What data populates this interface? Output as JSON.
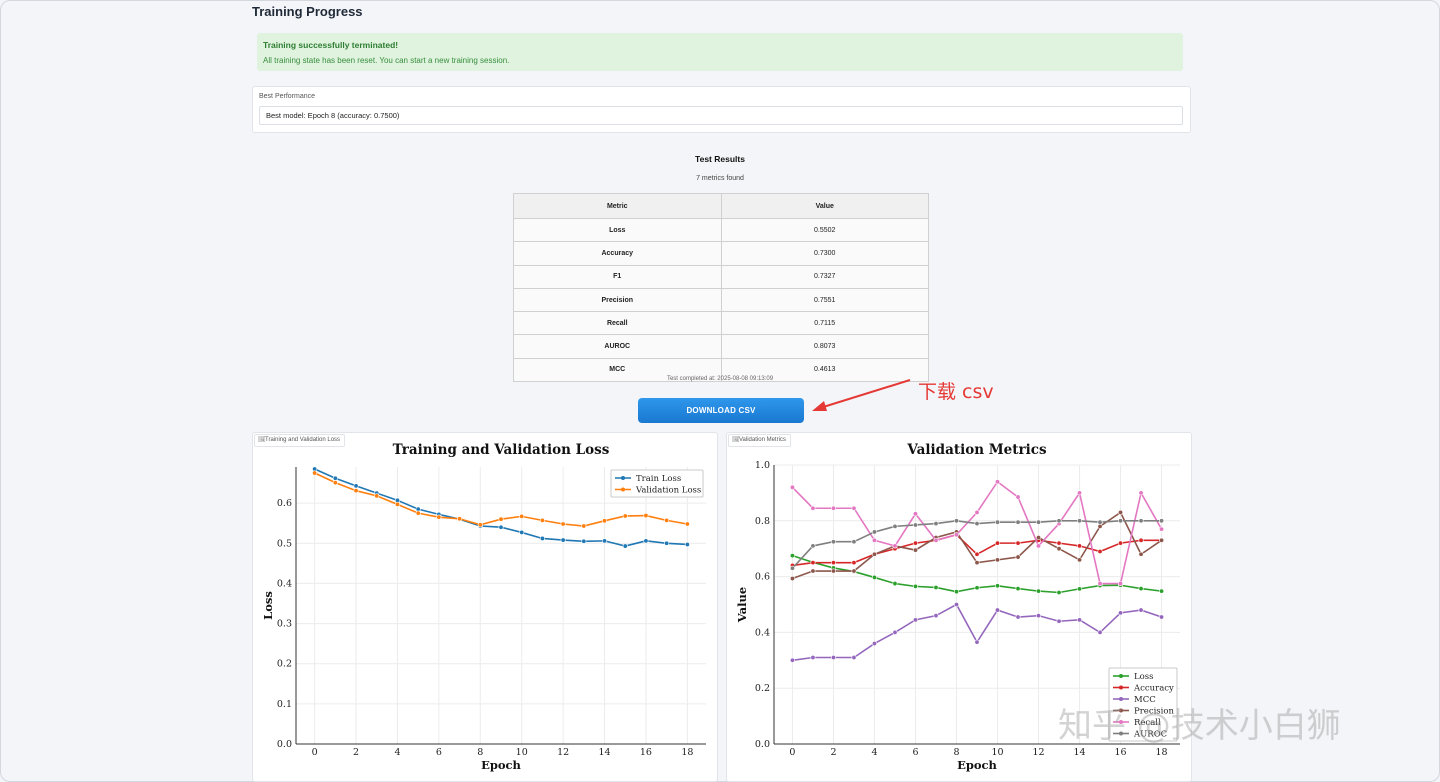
{
  "page": {
    "title": "Training Progress"
  },
  "alert": {
    "title": "Training successfully terminated!",
    "message": "All training state has been reset. You can start a new training session."
  },
  "best": {
    "label": "Best Performance",
    "value": "Best model: Epoch 8 (accuracy: 0.7500)"
  },
  "test": {
    "title": "Test Results",
    "count_text": "7 metrics found",
    "headers": [
      "Metric",
      "Value"
    ],
    "rows": [
      [
        "Loss",
        "0.5502"
      ],
      [
        "Accuracy",
        "0.7300"
      ],
      [
        "F1",
        "0.7327"
      ],
      [
        "Precision",
        "0.7551"
      ],
      [
        "Recall",
        "0.7115"
      ],
      [
        "AUROC",
        "0.8073"
      ],
      [
        "MCC",
        "0.4613"
      ]
    ],
    "completed": "Test completed at: 2025-08-08 09:13:09"
  },
  "download": {
    "label": "DOWNLOAD CSV"
  },
  "annotation": {
    "text": "下载 csv",
    "color": "#e53935"
  },
  "watermark": "知乎 @技术小白狮",
  "panels": {
    "loss_tag": "Training and Validation Loss",
    "metrics_tag": "Validation Metrics"
  },
  "chart_data": [
    {
      "type": "line",
      "title": "Training and Validation Loss",
      "xlabel": "Epoch",
      "ylabel": "Loss",
      "x": [
        0,
        1,
        2,
        3,
        4,
        5,
        6,
        7,
        8,
        9,
        10,
        11,
        12,
        13,
        14,
        15,
        16,
        17,
        18
      ],
      "xlim": [
        -0.9,
        18.9
      ],
      "ylim": [
        0.0,
        0.69
      ],
      "xticks": [
        "0",
        "2",
        "4",
        "6",
        "8",
        "10",
        "12",
        "14",
        "16",
        "18"
      ],
      "yticks": [
        "0.0",
        "0.1",
        "0.2",
        "0.3",
        "0.4",
        "0.5",
        "0.6"
      ],
      "grid": true,
      "legend": "top-right",
      "series": [
        {
          "name": "Train Loss",
          "color": "#1f77b4",
          "values": [
            0.685,
            0.662,
            0.643,
            0.625,
            0.607,
            0.585,
            0.572,
            0.56,
            0.543,
            0.54,
            0.527,
            0.512,
            0.508,
            0.505,
            0.506,
            0.493,
            0.506,
            0.5,
            0.497
          ]
        },
        {
          "name": "Validation Loss",
          "color": "#ff7f0e",
          "values": [
            0.675,
            0.651,
            0.631,
            0.618,
            0.597,
            0.575,
            0.565,
            0.561,
            0.546,
            0.56,
            0.567,
            0.557,
            0.548,
            0.543,
            0.556,
            0.568,
            0.569,
            0.557,
            0.548
          ]
        }
      ]
    },
    {
      "type": "line",
      "title": "Validation Metrics",
      "xlabel": "Epoch",
      "ylabel": "Value",
      "x": [
        0,
        1,
        2,
        3,
        4,
        5,
        6,
        7,
        8,
        9,
        10,
        11,
        12,
        13,
        14,
        15,
        16,
        17,
        18
      ],
      "xlim": [
        -0.9,
        18.9
      ],
      "ylim": [
        0.0,
        1.0
      ],
      "xticks": [
        "0",
        "2",
        "4",
        "6",
        "8",
        "10",
        "12",
        "14",
        "16",
        "18"
      ],
      "yticks": [
        "0.0",
        "0.2",
        "0.4",
        "0.6",
        "0.8",
        "1.0"
      ],
      "grid": true,
      "legend": "bottom-right",
      "series": [
        {
          "name": "Loss",
          "color": "#2ca02c",
          "values": [
            0.675,
            0.651,
            0.631,
            0.618,
            0.597,
            0.575,
            0.565,
            0.561,
            0.546,
            0.56,
            0.567,
            0.557,
            0.548,
            0.543,
            0.556,
            0.568,
            0.569,
            0.557,
            0.548
          ]
        },
        {
          "name": "Accuracy",
          "color": "#d62728",
          "values": [
            0.64,
            0.65,
            0.65,
            0.65,
            0.68,
            0.7,
            0.72,
            0.73,
            0.75,
            0.68,
            0.72,
            0.72,
            0.73,
            0.72,
            0.71,
            0.69,
            0.72,
            0.73,
            0.73
          ]
        },
        {
          "name": "MCC",
          "color": "#9467bd",
          "values": [
            0.3,
            0.31,
            0.31,
            0.31,
            0.36,
            0.4,
            0.445,
            0.46,
            0.5,
            0.365,
            0.48,
            0.455,
            0.46,
            0.44,
            0.445,
            0.4,
            0.47,
            0.48,
            0.455
          ]
        },
        {
          "name": "Precision",
          "color": "#8c564b",
          "values": [
            0.593,
            0.62,
            0.62,
            0.62,
            0.68,
            0.71,
            0.695,
            0.74,
            0.76,
            0.65,
            0.66,
            0.67,
            0.74,
            0.7,
            0.66,
            0.78,
            0.83,
            0.68,
            0.73
          ]
        },
        {
          "name": "Recall",
          "color": "#e377c2",
          "values": [
            0.92,
            0.845,
            0.845,
            0.845,
            0.73,
            0.71,
            0.825,
            0.73,
            0.75,
            0.83,
            0.94,
            0.885,
            0.71,
            0.79,
            0.9,
            0.575,
            0.575,
            0.9,
            0.77
          ]
        },
        {
          "name": "AUROC",
          "color": "#7f7f7f",
          "values": [
            0.63,
            0.71,
            0.725,
            0.725,
            0.76,
            0.78,
            0.785,
            0.79,
            0.8,
            0.79,
            0.795,
            0.795,
            0.795,
            0.8,
            0.8,
            0.795,
            0.8,
            0.8,
            0.8
          ]
        }
      ]
    }
  ]
}
